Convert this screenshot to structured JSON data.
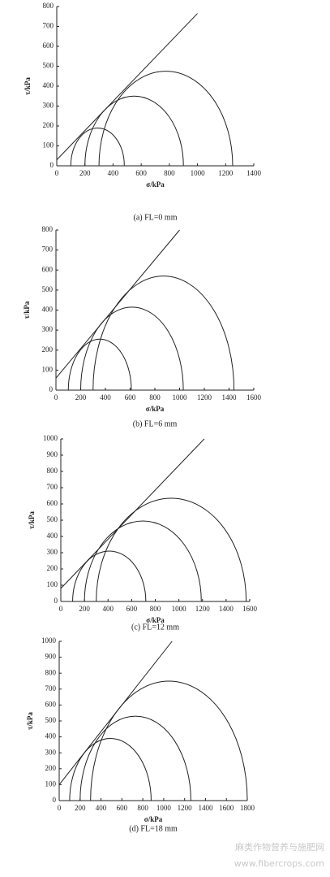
{
  "chart_data": [
    {
      "type": "mohr",
      "caption": "(a) FL=0 mm",
      "xlabel": "σ/kPa",
      "ylabel": "τ/kPa",
      "xlim": [
        0,
        1400
      ],
      "xticks": [
        0,
        200,
        400,
        600,
        800,
        1000,
        1200,
        1400
      ],
      "ylim": [
        0,
        800
      ],
      "yticks": [
        0,
        100,
        200,
        300,
        400,
        500,
        600,
        700,
        800
      ],
      "sigma3": [
        100,
        200,
        300
      ],
      "sigma1": [
        480,
        900,
        1250
      ],
      "envelope": {
        "x": [
          0,
          1000
        ],
        "y": [
          30,
          765
        ]
      },
      "color": "#222222"
    },
    {
      "type": "mohr",
      "caption": "(b) FL=6 mm",
      "xlabel": "σ/kPa",
      "ylabel": "τ/kPa",
      "xlim": [
        0,
        1600
      ],
      "xticks": [
        0,
        200,
        400,
        600,
        800,
        1000,
        1200,
        1400,
        1600
      ],
      "ylim": [
        0,
        800
      ],
      "yticks": [
        0,
        100,
        200,
        300,
        400,
        500,
        600,
        700,
        800
      ],
      "sigma3": [
        100,
        200,
        300
      ],
      "sigma1": [
        610,
        1030,
        1440
      ],
      "envelope": {
        "x": [
          0,
          1000
        ],
        "y": [
          60,
          800
        ]
      },
      "color": "#222222"
    },
    {
      "type": "mohr",
      "caption": "(c) FL=12 mm",
      "xlabel": "σ/kPa",
      "ylabel": "τ/kPa",
      "xlim": [
        0,
        1600
      ],
      "xticks": [
        0,
        200,
        400,
        600,
        800,
        1000,
        1200,
        1400,
        1600
      ],
      "ylim": [
        0,
        1000
      ],
      "yticks": [
        0,
        100,
        200,
        300,
        400,
        500,
        600,
        700,
        800,
        900,
        1000
      ],
      "sigma3": [
        100,
        200,
        300
      ],
      "sigma1": [
        720,
        1190,
        1570
      ],
      "envelope": {
        "x": [
          0,
          1215
        ],
        "y": [
          80,
          1000
        ]
      },
      "color": "#222222"
    },
    {
      "type": "mohr",
      "caption": "(d) FL=18 mm",
      "xlabel": "σ/kPa",
      "ylabel": "τ/kPa",
      "xlim": [
        0,
        1800
      ],
      "xticks": [
        0,
        200,
        400,
        600,
        800,
        1000,
        1200,
        1400,
        1600,
        1800
      ],
      "ylim": [
        0,
        1000
      ],
      "yticks": [
        0,
        100,
        200,
        300,
        400,
        500,
        600,
        700,
        800,
        900,
        1000
      ],
      "sigma3": [
        100,
        200,
        300
      ],
      "sigma1": [
        880,
        1260,
        1800
      ],
      "envelope": {
        "x": [
          0,
          1080
        ],
        "y": [
          100,
          1000
        ]
      },
      "color": "#222222"
    }
  ],
  "watermark": {
    "line1": "麻类作物营养与施肥网",
    "line2": "www.fibercrops.com"
  }
}
